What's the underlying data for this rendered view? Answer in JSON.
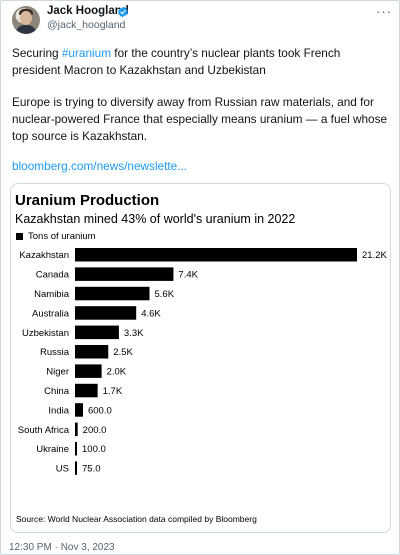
{
  "author": {
    "name": "Jack Hoogland",
    "handle": "@jack_hoogland"
  },
  "more_label": "···",
  "tweet": {
    "p1_before": "Securing ",
    "p1_hashtag": "#uranium",
    "p1_after": " for the country’s nuclear plants took French president Macron to Kazakhstan and Uzbekistan",
    "p2": "Europe is trying to diversify away from Russian raw materials, and for nuclear-powered France that especially means uranium — a fuel whose top source is Kazakhstan.",
    "link": "bloomberg.com/news/newslette..."
  },
  "card": {
    "source": "Source: World Nuclear Association data compiled by Bloomberg"
  },
  "timestamp": "12:30 PM · Nov 3, 2023",
  "colors": {
    "accent": "#1d9bf0",
    "bar": "#000000",
    "verified": "#1d9bf0"
  },
  "chart_data": {
    "type": "bar",
    "orientation": "horizontal",
    "title": "Uranium Production",
    "subtitle": "Kazakhstan mined 43% of world's uranium in 2022",
    "legend": [
      "Tons of uranium"
    ],
    "legend_position": "top-left",
    "grid": false,
    "categories": [
      "Kazakhstan",
      "Canada",
      "Namibia",
      "Australia",
      "Uzbekistan",
      "Russia",
      "Niger",
      "China",
      "India",
      "South Africa",
      "Ukraine",
      "US"
    ],
    "values": [
      21200,
      7400,
      5600,
      4600,
      3300,
      2500,
      2000,
      1700,
      600,
      200,
      100,
      75
    ],
    "data_labels": [
      "21.2K",
      "7.4K",
      "5.6K",
      "4.6K",
      "3.3K",
      "2.5K",
      "2.0K",
      "1.7K",
      "600.0",
      "200.0",
      "100.0",
      "75.0"
    ],
    "xlim": [
      0,
      21200
    ]
  }
}
